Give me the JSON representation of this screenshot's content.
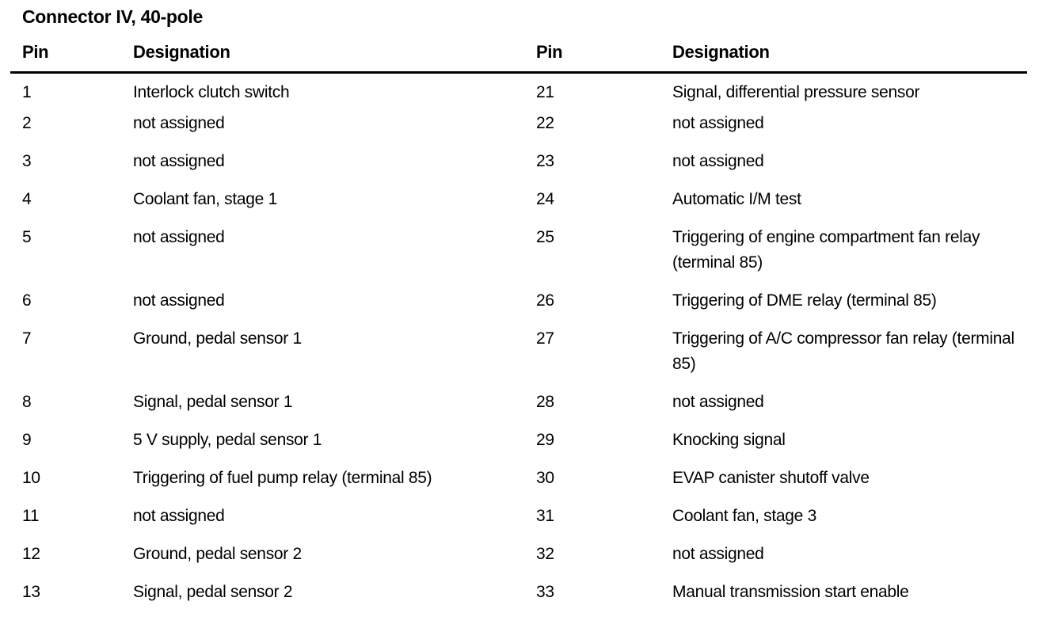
{
  "page": {
    "title": "Connector IV, 40-pole"
  },
  "table": {
    "headers": {
      "pin_left": "Pin",
      "designation_left": "Designation",
      "pin_right": "Pin",
      "designation_right": "Designation"
    },
    "rows": [
      {
        "pin_l": "1",
        "des_l": "Interlock clutch switch",
        "pin_r": "21",
        "des_r": "Signal, differential pressure sensor"
      },
      {
        "pin_l": "2",
        "des_l": "not assigned",
        "pin_r": "22",
        "des_r": "not assigned"
      },
      {
        "pin_l": "3",
        "des_l": "not assigned",
        "pin_r": "23",
        "des_r": "not assigned"
      },
      {
        "pin_l": "4",
        "des_l": "Coolant fan, stage 1",
        "pin_r": "24",
        "des_r": "Automatic I/M test"
      },
      {
        "pin_l": "5",
        "des_l": "not assigned",
        "pin_r": "25",
        "des_r": "Triggering of engine compartment fan relay (terminal 85)"
      },
      {
        "pin_l": "6",
        "des_l": "not assigned",
        "pin_r": "26",
        "des_r": "Triggering of DME relay (terminal 85)"
      },
      {
        "pin_l": "7",
        "des_l": "Ground, pedal sensor 1",
        "pin_r": "27",
        "des_r": "Triggering of A/C compressor fan relay (terminal 85)"
      },
      {
        "pin_l": "8",
        "des_l": "Signal, pedal sensor 1",
        "pin_r": "28",
        "des_r": "not assigned"
      },
      {
        "pin_l": "9",
        "des_l": "5 V supply, pedal sensor 1",
        "pin_r": "29",
        "des_r": "Knocking signal"
      },
      {
        "pin_l": "10",
        "des_l": "Triggering of fuel pump relay (terminal 85)",
        "pin_r": "30",
        "des_r": "EVAP canister shutoff valve"
      },
      {
        "pin_l": "11",
        "des_l": "not assigned",
        "pin_r": "31",
        "des_r": "Coolant fan, stage 3"
      },
      {
        "pin_l": "12",
        "des_l": "Ground, pedal sensor 2",
        "pin_r": "32",
        "des_r": "not assigned"
      },
      {
        "pin_l": "13",
        "des_l": "Signal, pedal sensor 2",
        "pin_r": "33",
        "des_r": "Manual transmission start enable"
      }
    ]
  },
  "colors": {
    "text": "#000000",
    "background": "#ffffff",
    "rule": "#000000"
  }
}
